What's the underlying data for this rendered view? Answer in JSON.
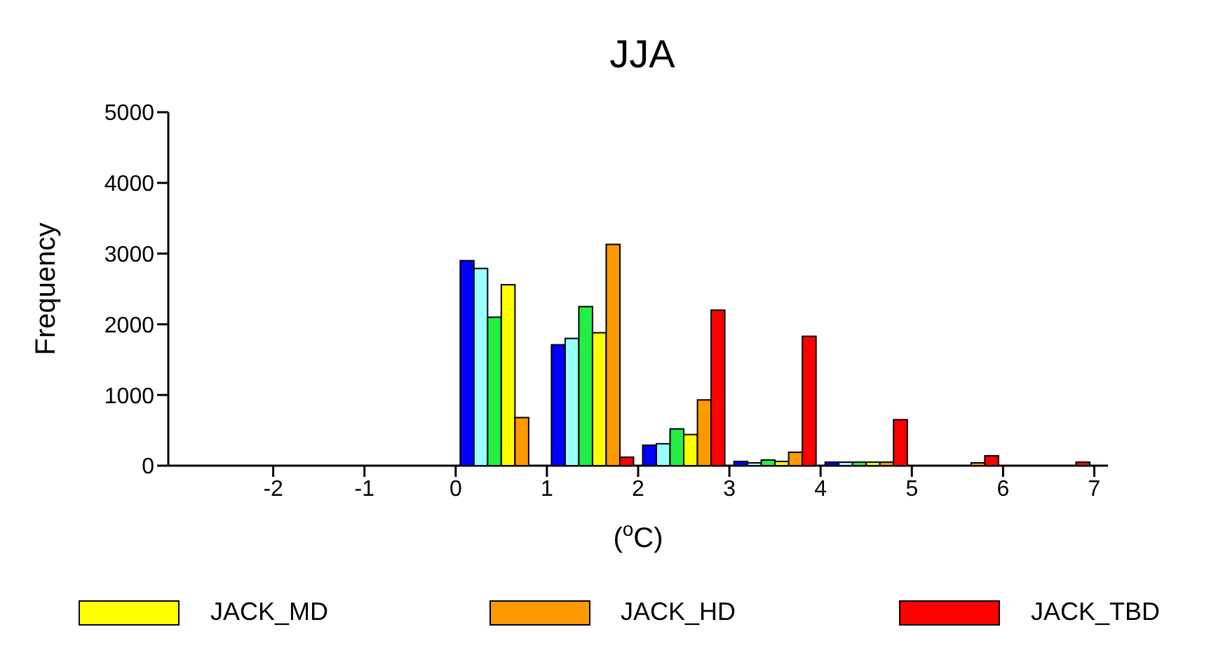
{
  "chart_data": {
    "type": "bar",
    "title": "JJA",
    "xlabel": "($^{o}$C)",
    "ylabel": "Frequency",
    "xlim": [
      -3.15,
      7.15
    ],
    "xticks": [
      -2,
      -1,
      0,
      1,
      2,
      3,
      4,
      5,
      6,
      7
    ],
    "ylim": [
      0,
      5000
    ],
    "yticks": [
      0,
      1000,
      2000,
      3000,
      4000,
      5000
    ],
    "grid": false,
    "legend": "bottom",
    "series": [
      {
        "color": "#0000ff",
        "x": [
          0.125,
          1.125,
          2.125,
          3.125,
          4.125,
          5.125,
          6.125
        ],
        "values": [
          2900,
          1710,
          290,
          60,
          50,
          0,
          0
        ]
      },
      {
        "color": "#99ffff",
        "x": [
          0.275,
          1.275,
          2.275,
          3.275,
          4.275,
          5.275,
          6.275
        ],
        "values": [
          2790,
          1800,
          310,
          40,
          50,
          0,
          0
        ]
      },
      {
        "color": "#22ee44",
        "x": [
          0.425,
          1.425,
          2.425,
          3.425,
          4.425,
          5.425,
          6.425
        ],
        "values": [
          2100,
          2250,
          520,
          80,
          50,
          null,
          0
        ]
      },
      {
        "name": "JACK_MD",
        "color": "#ffff00",
        "x": [
          0.575,
          1.575,
          2.575,
          3.575,
          4.575,
          5.575,
          6.575
        ],
        "values": [
          2560,
          1880,
          440,
          60,
          50,
          null,
          0
        ]
      },
      {
        "name": "JACK_HD",
        "color": "#ff9900",
        "x": [
          0.725,
          1.725,
          2.725,
          3.725,
          4.725,
          5.725,
          6.725
        ],
        "values": [
          680,
          3130,
          930,
          190,
          50,
          40,
          0
        ]
      },
      {
        "name": "JACK_TBD",
        "color": "#ff0000",
        "x": [
          0.875,
          1.875,
          2.875,
          3.875,
          4.875,
          5.875,
          6.875
        ],
        "values": [
          0,
          120,
          2200,
          1830,
          650,
          140,
          50
        ]
      }
    ]
  }
}
